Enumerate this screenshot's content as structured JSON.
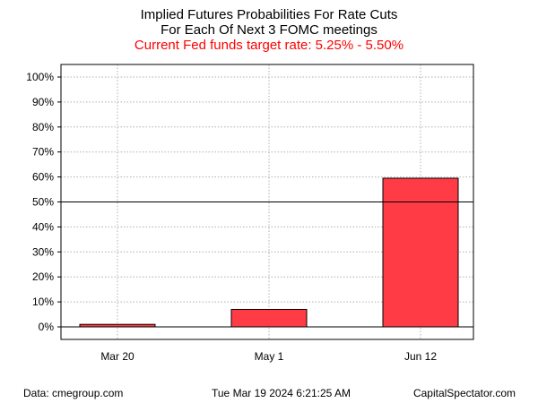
{
  "chart_data": {
    "type": "bar",
    "title": "Implied Futures Probabilities For Rate Cuts",
    "subtitle": "For Each Of Next 3 FOMC meetings",
    "subtitle2": "Current Fed funds target rate: 5.25% - 5.50%",
    "categories": [
      "Mar 20",
      "May 1",
      "Jun 12"
    ],
    "values": [
      1,
      7,
      59.5
    ],
    "yticks": [
      "0%",
      "10%",
      "20%",
      "30%",
      "40%",
      "50%",
      "60%",
      "70%",
      "80%",
      "90%",
      "100%"
    ],
    "ylim": [
      0,
      100
    ],
    "reference_line": 50,
    "grid": true,
    "colors": {
      "bar": "#ff3b45",
      "subtitle2": "#ff0000",
      "grid": "#b0b0b0"
    }
  },
  "footer": {
    "source": "Data: cmegroup.com",
    "timestamp": "Tue Mar 19 2024 6:21:25 AM",
    "brand": "CapitalSpectator.com"
  }
}
